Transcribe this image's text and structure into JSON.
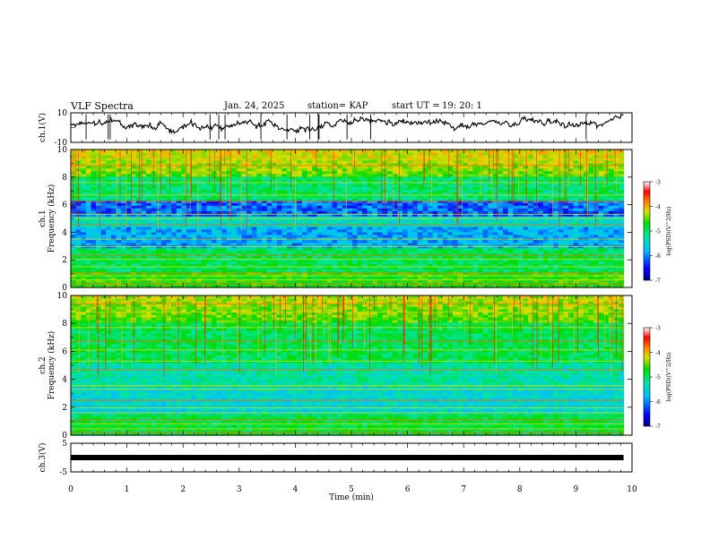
{
  "header": {
    "title": "VLF Spectra",
    "date": "Jan. 24, 2025",
    "station": "station= KAP",
    "start_label": "start  UT =",
    "start_time": "19: 20: 1"
  },
  "chart_data": [
    {
      "type": "line",
      "panel": "ch1-waveform",
      "ylabel": "ch.1(V)",
      "ylim": [
        -10,
        10
      ],
      "yticks": [
        "10",
        "-10"
      ],
      "xlim": [
        0,
        10
      ],
      "series": [
        {
          "name": "ch.1",
          "color": "#000000",
          "baseline": 1.5,
          "range": [
            -6,
            9
          ]
        }
      ]
    },
    {
      "type": "heatmap",
      "panel": "ch1-spectrogram",
      "ylabel": "ch.1",
      "ylabel2": "Frequency (kHz)",
      "ylim": [
        0,
        10
      ],
      "yticks": [
        "0",
        "2",
        "4",
        "6",
        "8",
        "10"
      ],
      "xlim": [
        0,
        9.85
      ],
      "colorbar": {
        "label": "log(PSD)(V^2/Hz)",
        "range": [
          -7,
          -3
        ],
        "ticks": [
          "-3",
          "-4",
          "-5",
          "-6",
          "-7"
        ],
        "colors": [
          "#000080",
          "#0000ff",
          "#00bfff",
          "#00e5a0",
          "#00dd00",
          "#dddd00",
          "#ff8000",
          "#ff0000",
          "#ffffff"
        ]
      }
    },
    {
      "type": "heatmap",
      "panel": "ch2-spectrogram",
      "ylabel": "ch.2",
      "ylabel2": "Frequency (kHz)",
      "ylim": [
        0,
        10
      ],
      "yticks": [
        "0",
        "2",
        "4",
        "6",
        "8",
        "10"
      ],
      "xlim": [
        0,
        9.85
      ],
      "colorbar": {
        "label": "log(PSD)(V^2/Hz)",
        "range": [
          -7,
          -3
        ],
        "ticks": [
          "-3",
          "-4",
          "-5",
          "-6",
          "-7"
        ],
        "colors": [
          "#000080",
          "#0000ff",
          "#00bfff",
          "#00e5a0",
          "#00dd00",
          "#dddd00",
          "#ff8000",
          "#ff0000",
          "#ffffff"
        ]
      }
    },
    {
      "type": "line",
      "panel": "ch3-waveform",
      "ylabel": "ch.3(V)",
      "ylim": [
        -5,
        5
      ],
      "yticks": [
        "5",
        "-5"
      ],
      "xlim": [
        0,
        10
      ],
      "series": [
        {
          "name": "ch.3",
          "color": "#000000",
          "value": 0
        }
      ]
    }
  ],
  "xaxis": {
    "label": "Time (min)",
    "range": [
      0,
      10
    ],
    "ticks": [
      "0",
      "1",
      "2",
      "3",
      "4",
      "5",
      "6",
      "7",
      "8",
      "9",
      "10"
    ]
  }
}
